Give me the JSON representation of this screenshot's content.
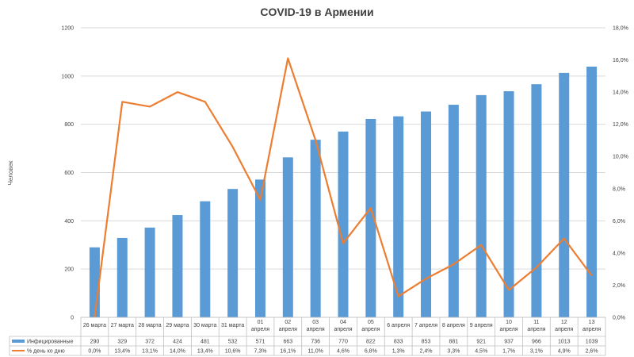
{
  "chart_data": {
    "type": "bar",
    "title": "COVID-19 в Армении",
    "ylabel": "Человек",
    "ylim": [
      0,
      1200
    ],
    "y2lim": [
      0,
      18
    ],
    "y_ticks": [
      "0",
      "200",
      "400",
      "600",
      "800",
      "1000",
      "1200"
    ],
    "y2_ticks": [
      "0,0%",
      "2,0%",
      "4,0%",
      "6,0%",
      "8,0%",
      "10,0%",
      "12,0%",
      "14,0%",
      "16,0%",
      "18,0%"
    ],
    "grid": true,
    "legend": "data-table",
    "categories": [
      [
        "26 марта"
      ],
      [
        "27 марта"
      ],
      [
        "28 марта"
      ],
      [
        "29 марта"
      ],
      [
        "30 марта"
      ],
      [
        "31 марта"
      ],
      [
        "01",
        "апреля"
      ],
      [
        "02",
        "апреля"
      ],
      [
        "03",
        "апреля"
      ],
      [
        "04",
        "апреля"
      ],
      [
        "05",
        "апреля"
      ],
      [
        "6 апреля"
      ],
      [
        "7 апреля"
      ],
      [
        "8 апреля"
      ],
      [
        "9 апреля"
      ],
      [
        "10",
        "апреля"
      ],
      [
        "11",
        "апреля"
      ],
      [
        "12",
        "апреля"
      ],
      [
        "13",
        "апреля"
      ]
    ],
    "series": [
      {
        "name": "Инфицированные",
        "type": "bar",
        "axis": "left",
        "color": "#5B9BD5",
        "values": [
          290,
          329,
          372,
          424,
          481,
          532,
          571,
          663,
          736,
          770,
          822,
          833,
          853,
          881,
          921,
          937,
          966,
          1013,
          1039
        ],
        "labels": [
          "290",
          "329",
          "372",
          "424",
          "481",
          "532",
          "571",
          "663",
          "736",
          "770",
          "822",
          "833",
          "853",
          "881",
          "921",
          "937",
          "966",
          "1013",
          "1039"
        ]
      },
      {
        "name": "% день ко дню",
        "type": "line",
        "axis": "right",
        "color": "#ED7D31",
        "values": [
          0.0,
          13.4,
          13.1,
          14.0,
          13.4,
          10.6,
          7.3,
          16.1,
          11.0,
          4.6,
          6.8,
          1.3,
          2.4,
          3.3,
          4.5,
          1.7,
          3.1,
          4.9,
          2.6
        ],
        "labels": [
          "0,0%",
          "13,4%",
          "13,1%",
          "14,0%",
          "13,4%",
          "10,6%",
          "7,3%",
          "16,1%",
          "11,0%",
          "4,6%",
          "6,8%",
          "1,3%",
          "2,4%",
          "3,3%",
          "4,5%",
          "1,7%",
          "3,1%",
          "4,9%",
          "2,6%"
        ]
      }
    ]
  }
}
